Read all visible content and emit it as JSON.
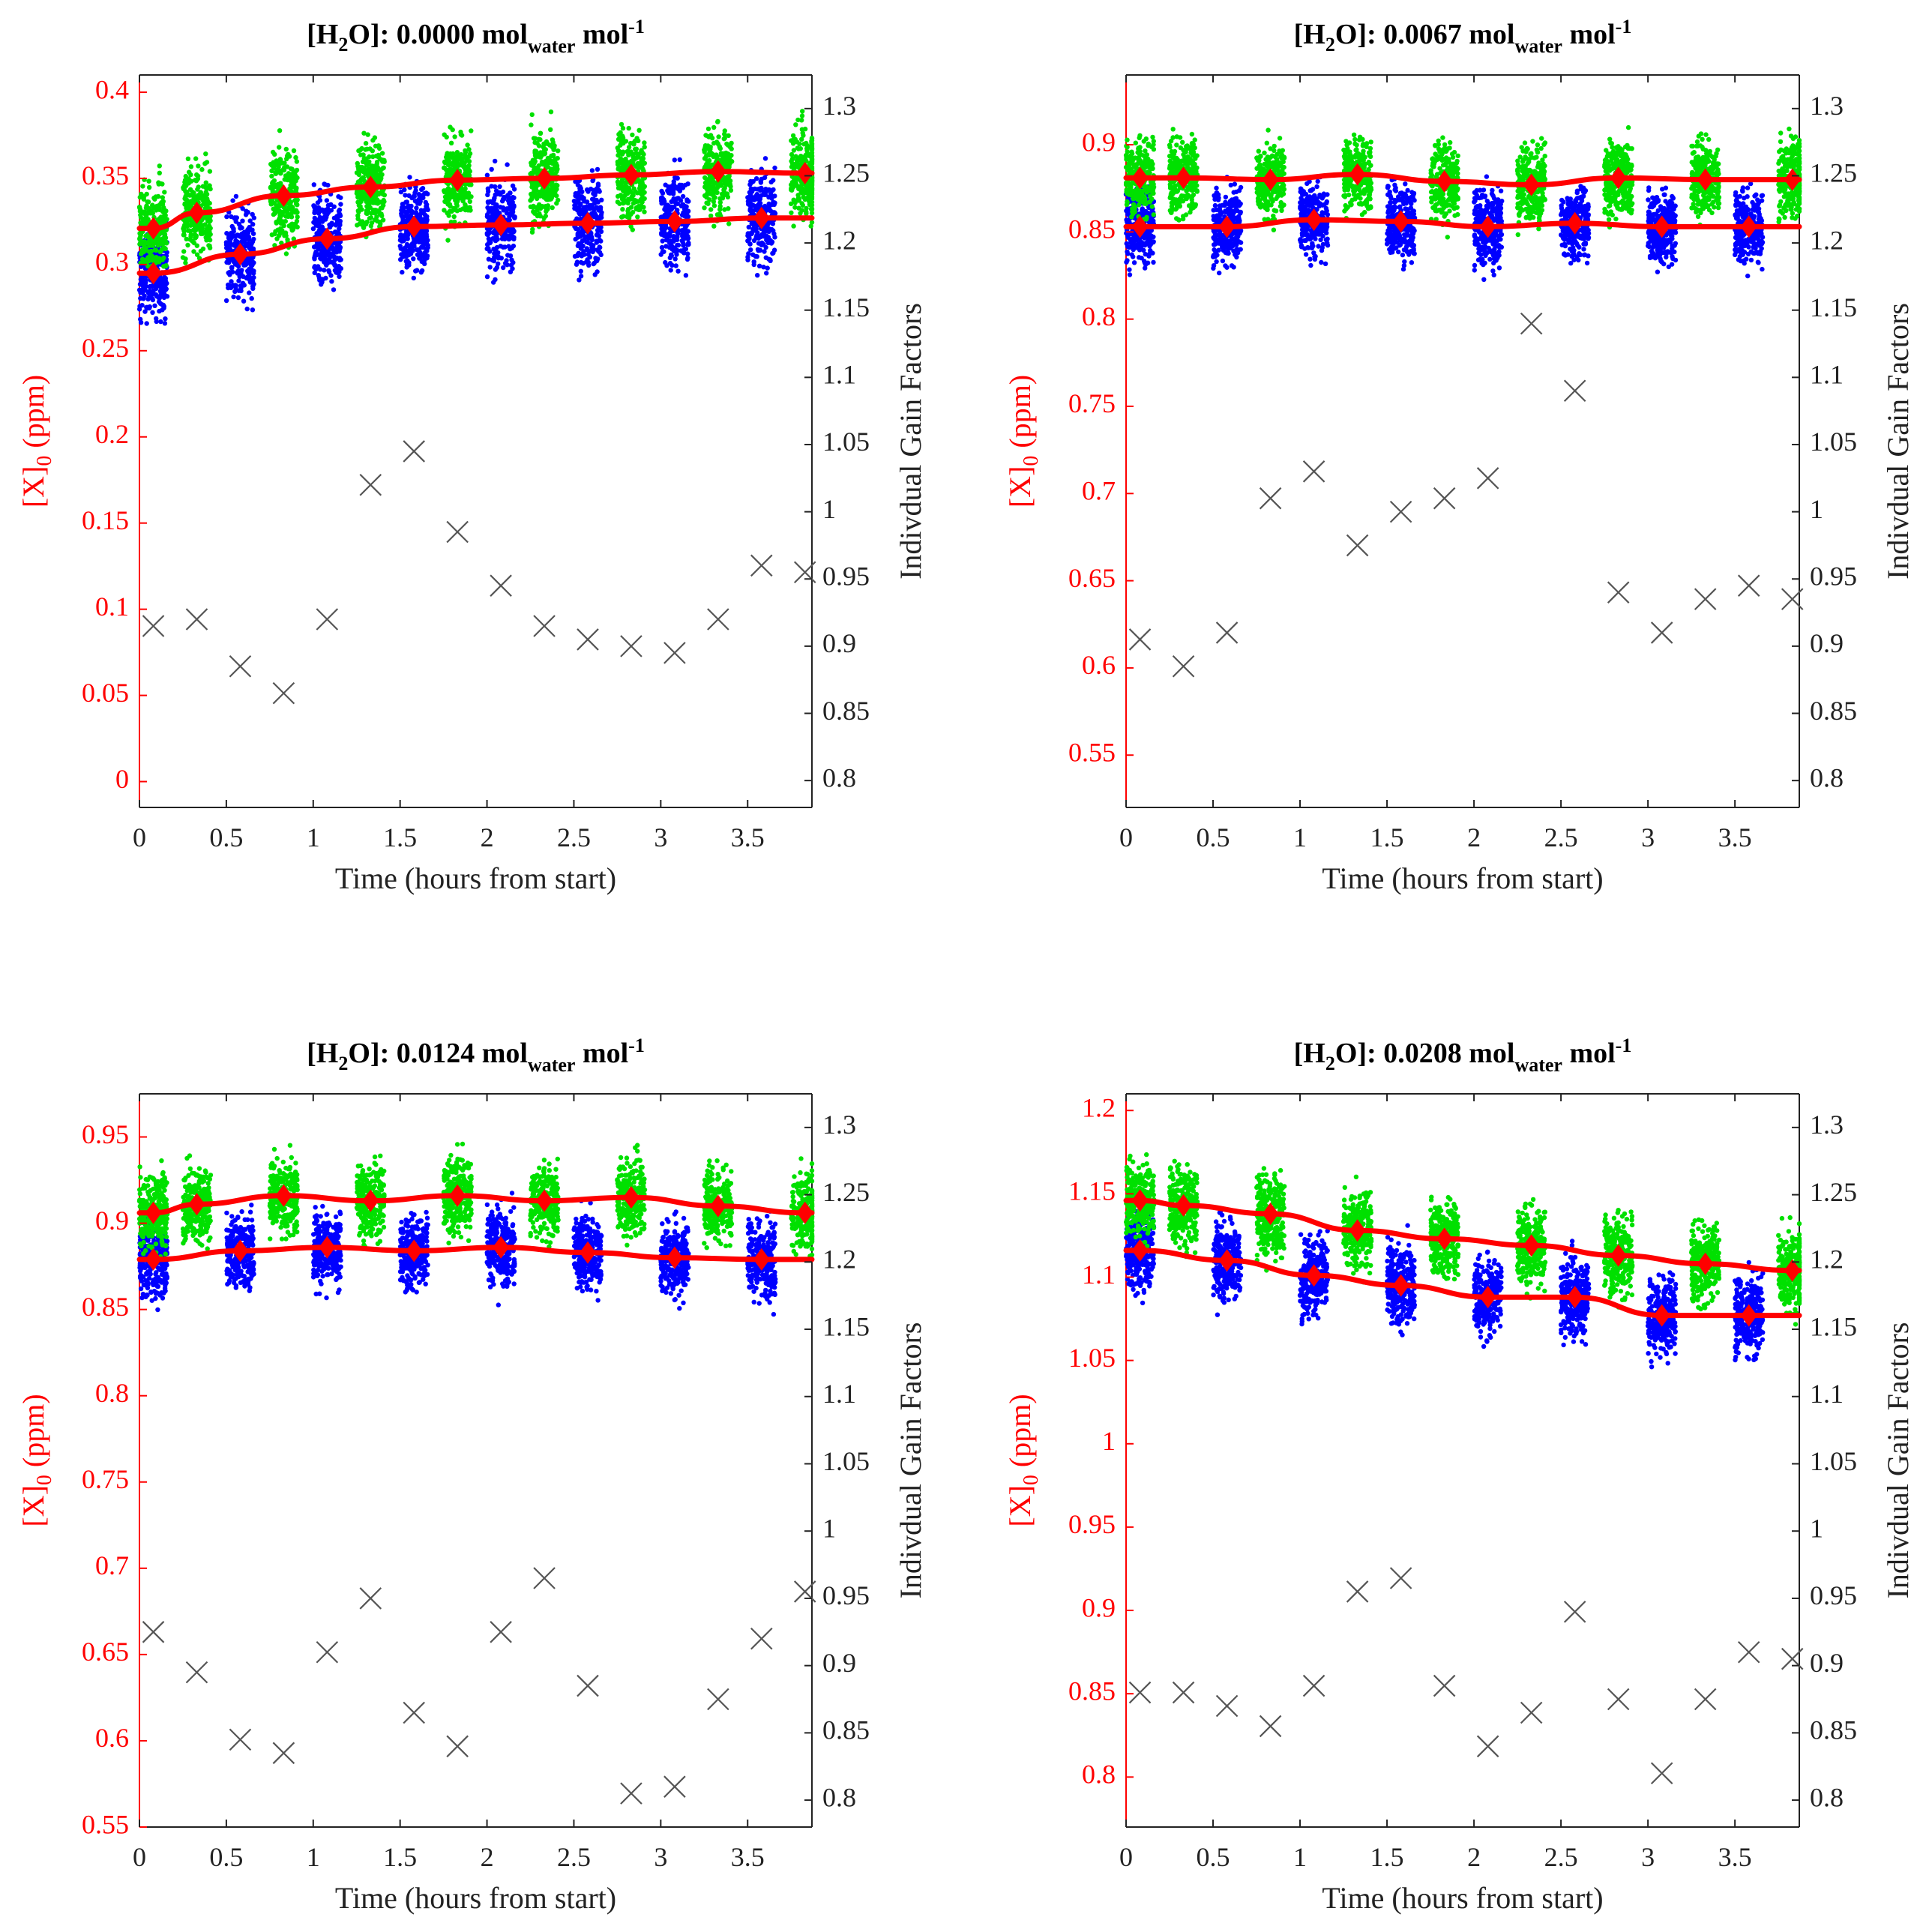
{
  "colors": {
    "left_axis": "#ff0000",
    "right_axis": "#222222",
    "fit_line": "#ff0000",
    "diamond_marker": "#ff0000",
    "blue_scatter": "#0000ff",
    "green_scatter": "#00e000",
    "gain_marker": "#555555"
  },
  "chart_data": [
    {
      "type": "scatter",
      "title": {
        "prefix": "[H",
        "sub1": "2",
        "mid": "O]: 0.0000 mol",
        "sub2": "water",
        "post": " mol",
        "sup": "-1"
      },
      "xlabel": "Time (hours from start)",
      "ylabel": {
        "main": "[X]",
        "sub": "0",
        "unit": " (ppm)"
      },
      "ylabel_right": "Indivdual Gain Factors",
      "xlim": [
        0,
        3.87
      ],
      "ylim": [
        -0.015,
        0.41
      ],
      "ylim_right": [
        0.78,
        1.325
      ],
      "x_ticks": [
        0,
        0.5,
        1,
        1.5,
        2,
        2.5,
        3,
        3.5
      ],
      "x_tick_labels": [
        "0",
        "0.5",
        "1",
        "1.5",
        "2",
        "2.5",
        "3",
        "3.5"
      ],
      "y_ticks": [
        0,
        0.05,
        0.1,
        0.15,
        0.2,
        0.25,
        0.3,
        0.35,
        0.4
      ],
      "y_tick_labels": [
        "0",
        "0.05",
        "0.1",
        "0.15",
        "0.2",
        "0.25",
        "0.3",
        "0.35",
        "0.4"
      ],
      "y_ticks_right": [
        0.8,
        0.85,
        0.9,
        0.95,
        1,
        1.05,
        1.1,
        1.15,
        1.2,
        1.25,
        1.3
      ],
      "y_tick_labels_right": [
        "0.8",
        "0.85",
        "0.9",
        "0.95",
        "1",
        "1.05",
        "1.1",
        "1.15",
        "1.2",
        "1.25",
        "1.3"
      ],
      "cluster_spread": 0.03,
      "series": [
        {
          "role": "upper_fit",
          "x": [
            0.08,
            0.33,
            0.83,
            1.33,
            1.83,
            2.33,
            2.83,
            3.33,
            3.83
          ],
          "values": [
            0.321,
            0.33,
            0.34,
            0.345,
            0.349,
            0.35,
            0.352,
            0.354,
            0.353
          ]
        },
        {
          "role": "lower_fit",
          "x": [
            0.08,
            0.58,
            1.08,
            1.58,
            2.08,
            2.58,
            3.08,
            3.58
          ],
          "values": [
            0.295,
            0.306,
            0.315,
            0.322,
            0.323,
            0.324,
            0.325,
            0.327
          ]
        },
        {
          "role": "gain_factors",
          "axis": "right",
          "x": [
            0.08,
            0.33,
            0.58,
            0.83,
            1.08,
            1.33,
            1.58,
            1.83,
            2.08,
            2.33,
            2.58,
            2.83,
            3.08,
            3.33,
            3.58,
            3.83
          ],
          "values": [
            0.915,
            0.92,
            0.885,
            0.865,
            0.92,
            1.02,
            1.045,
            0.985,
            0.945,
            0.915,
            0.905,
            0.9,
            0.895,
            0.92,
            0.96,
            0.955
          ]
        }
      ]
    },
    {
      "type": "scatter",
      "title": {
        "prefix": "[H",
        "sub1": "2",
        "mid": "O]: 0.0067 mol",
        "sub2": "water",
        "post": " mol",
        "sup": "-1"
      },
      "xlabel": "Time (hours from start)",
      "ylabel": {
        "main": "[X]",
        "sub": "0",
        "unit": " (ppm)"
      },
      "ylabel_right": "Indivdual Gain Factors",
      "xlim": [
        0,
        3.87
      ],
      "ylim": [
        0.52,
        0.94
      ],
      "ylim_right": [
        0.78,
        1.325
      ],
      "x_ticks": [
        0,
        0.5,
        1,
        1.5,
        2,
        2.5,
        3,
        3.5
      ],
      "x_tick_labels": [
        "0",
        "0.5",
        "1",
        "1.5",
        "2",
        "2.5",
        "3",
        "3.5"
      ],
      "y_ticks": [
        0.55,
        0.6,
        0.65,
        0.7,
        0.75,
        0.8,
        0.85,
        0.9
      ],
      "y_tick_labels": [
        "0.55",
        "0.6",
        "0.65",
        "0.7",
        "0.75",
        "0.8",
        "0.85",
        "0.9"
      ],
      "y_ticks_right": [
        0.8,
        0.85,
        0.9,
        0.95,
        1,
        1.05,
        1.1,
        1.15,
        1.2,
        1.25,
        1.3
      ],
      "y_tick_labels_right": [
        "0.8",
        "0.85",
        "0.9",
        "0.95",
        "1",
        "1.05",
        "1.1",
        "1.15",
        "1.2",
        "1.25",
        "1.3"
      ],
      "cluster_spread": 0.025,
      "series": [
        {
          "role": "upper_fit",
          "x": [
            0.08,
            0.33,
            0.83,
            1.33,
            1.83,
            2.33,
            2.83,
            3.33,
            3.83
          ],
          "values": [
            0.881,
            0.881,
            0.88,
            0.883,
            0.879,
            0.877,
            0.881,
            0.88,
            0.88
          ]
        },
        {
          "role": "lower_fit",
          "x": [
            0.08,
            0.58,
            1.08,
            1.58,
            2.08,
            2.58,
            3.08,
            3.58
          ],
          "values": [
            0.853,
            0.853,
            0.857,
            0.856,
            0.853,
            0.855,
            0.853,
            0.853
          ]
        },
        {
          "role": "gain_factors",
          "axis": "right",
          "x": [
            0.08,
            0.33,
            0.58,
            0.83,
            1.08,
            1.33,
            1.58,
            1.83,
            2.08,
            2.33,
            2.58,
            2.83,
            3.08,
            3.33,
            3.58,
            3.83
          ],
          "values": [
            0.905,
            0.885,
            0.91,
            1.01,
            1.03,
            0.975,
            1.0,
            1.01,
            1.025,
            1.14,
            1.09,
            0.94,
            0.91,
            0.935,
            0.945,
            0.935
          ]
        }
      ]
    },
    {
      "type": "scatter",
      "title": {
        "prefix": "[H",
        "sub1": "2",
        "mid": "O]: 0.0124 mol",
        "sub2": "water",
        "post": " mol",
        "sup": "-1"
      },
      "xlabel": "Time (hours from start)",
      "ylabel": {
        "main": "[X]",
        "sub": "0",
        "unit": " (ppm)"
      },
      "ylabel_right": "Indivdual Gain Factors",
      "xlim": [
        0,
        3.87
      ],
      "ylim": [
        0.55,
        0.975
      ],
      "ylim_right": [
        0.78,
        1.325
      ],
      "x_ticks": [
        0,
        0.5,
        1,
        1.5,
        2,
        2.5,
        3,
        3.5
      ],
      "x_tick_labels": [
        "0",
        "0.5",
        "1",
        "1.5",
        "2",
        "2.5",
        "3",
        "3.5"
      ],
      "y_ticks": [
        0.55,
        0.6,
        0.65,
        0.7,
        0.75,
        0.8,
        0.85,
        0.9,
        0.95
      ],
      "y_tick_labels": [
        "0.55",
        "0.6",
        "0.65",
        "0.7",
        "0.75",
        "0.8",
        "0.85",
        "0.9",
        "0.95"
      ],
      "y_ticks_right": [
        0.8,
        0.85,
        0.9,
        0.95,
        1,
        1.05,
        1.1,
        1.15,
        1.2,
        1.25,
        1.3
      ],
      "y_tick_labels_right": [
        "0.8",
        "0.85",
        "0.9",
        "0.95",
        "1",
        "1.05",
        "1.1",
        "1.15",
        "1.2",
        "1.25",
        "1.3"
      ],
      "cluster_spread": 0.025,
      "series": [
        {
          "role": "upper_fit",
          "x": [
            0.08,
            0.33,
            0.83,
            1.33,
            1.83,
            2.33,
            2.83,
            3.33,
            3.83
          ],
          "values": [
            0.906,
            0.911,
            0.916,
            0.913,
            0.916,
            0.913,
            0.915,
            0.91,
            0.906
          ]
        },
        {
          "role": "lower_fit",
          "x": [
            0.08,
            0.58,
            1.08,
            1.58,
            2.08,
            2.58,
            3.08,
            3.58
          ],
          "values": [
            0.879,
            0.884,
            0.886,
            0.884,
            0.886,
            0.883,
            0.88,
            0.879
          ]
        },
        {
          "role": "gain_factors",
          "axis": "right",
          "x": [
            0.08,
            0.33,
            0.58,
            0.83,
            1.08,
            1.33,
            1.58,
            1.83,
            2.08,
            2.33,
            2.58,
            2.83,
            3.08,
            3.33,
            3.58,
            3.83
          ],
          "values": [
            0.925,
            0.895,
            0.845,
            0.835,
            0.91,
            0.95,
            0.865,
            0.84,
            0.925,
            0.965,
            0.885,
            0.805,
            0.81,
            0.875,
            0.92,
            0.955
          ]
        }
      ]
    },
    {
      "type": "scatter",
      "title": {
        "prefix": "[H",
        "sub1": "2",
        "mid": "O]: 0.0208 mol",
        "sub2": "water",
        "post": " mol",
        "sup": "-1"
      },
      "xlabel": "Time (hours from start)",
      "ylabel": {
        "main": "[X]",
        "sub": "0",
        "unit": " (ppm)"
      },
      "ylabel_right": "Indivdual Gain Factors",
      "xlim": [
        0,
        3.87
      ],
      "ylim": [
        0.77,
        1.21
      ],
      "ylim_right": [
        0.78,
        1.325
      ],
      "x_ticks": [
        0,
        0.5,
        1,
        1.5,
        2,
        2.5,
        3,
        3.5
      ],
      "x_tick_labels": [
        "0",
        "0.5",
        "1",
        "1.5",
        "2",
        "2.5",
        "3",
        "3.5"
      ],
      "y_ticks": [
        0.8,
        0.85,
        0.9,
        0.95,
        1,
        1.05,
        1.1,
        1.15,
        1.2
      ],
      "y_tick_labels": [
        "0.8",
        "0.85",
        "0.9",
        "0.95",
        "1",
        "1.05",
        "1.1",
        "1.15",
        "1.2"
      ],
      "y_ticks_right": [
        0.8,
        0.85,
        0.9,
        0.95,
        1,
        1.05,
        1.1,
        1.15,
        1.2,
        1.25,
        1.3
      ],
      "y_tick_labels_right": [
        "0.8",
        "0.85",
        "0.9",
        "0.95",
        "1",
        "1.05",
        "1.1",
        "1.15",
        "1.2",
        "1.25",
        "1.3"
      ],
      "cluster_spread": 0.028,
      "series": [
        {
          "role": "upper_fit",
          "x": [
            0.08,
            0.33,
            0.83,
            1.33,
            1.83,
            2.33,
            2.83,
            3.33,
            3.83
          ],
          "values": [
            1.146,
            1.143,
            1.138,
            1.128,
            1.123,
            1.119,
            1.113,
            1.108,
            1.104
          ]
        },
        {
          "role": "lower_fit",
          "x": [
            0.08,
            0.58,
            1.08,
            1.58,
            2.08,
            2.58,
            3.08,
            3.58
          ],
          "values": [
            1.116,
            1.11,
            1.101,
            1.095,
            1.088,
            1.088,
            1.077,
            1.077
          ]
        },
        {
          "role": "gain_factors",
          "axis": "right",
          "x": [
            0.08,
            0.33,
            0.58,
            0.83,
            1.08,
            1.33,
            1.58,
            1.83,
            2.08,
            2.33,
            2.58,
            2.83,
            3.08,
            3.33,
            3.58,
            3.83
          ],
          "values": [
            0.88,
            0.88,
            0.87,
            0.855,
            0.885,
            0.955,
            0.965,
            0.885,
            0.84,
            0.865,
            0.94,
            0.875,
            0.82,
            0.875,
            0.91,
            0.905
          ]
        }
      ]
    }
  ]
}
